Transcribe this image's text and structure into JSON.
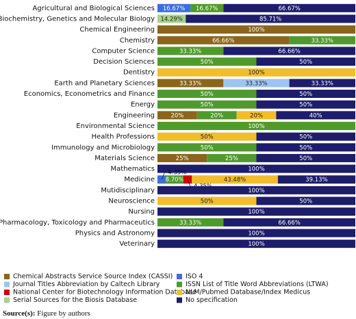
{
  "chart_data": {
    "type": "stacked-barh",
    "categories": [
      "Agricultural and Biological Sciences",
      "Biochemistry, Genetics and Molecular Biology",
      "Chemical Engineering",
      "Chemistry",
      "Computer Science",
      "Decision Sciences",
      "Dentistry",
      "Earth and Planetary Sciences",
      "Economics, Econometrics and Finance",
      "Energy",
      "Engineering",
      "Environmental Science",
      "Health Professions",
      "Immunology and Microbiology",
      "Materials Science",
      "Mathematics",
      "Medicine",
      "Mutidisciplinary",
      "Neuroscience",
      "Nursing",
      "Pharmacology, Toxicology and Pharmaceutics",
      "Physics and Astronomy",
      "Veterinary"
    ],
    "xlim": [
      0,
      100
    ],
    "series": [
      {
        "name": "Chemical Abstracts Service Source Index (CASSI)",
        "color": "#8a651b",
        "values": [
          0,
          0,
          100,
          66.66,
          0,
          0,
          0,
          33.33,
          0,
          0,
          20,
          0,
          0,
          0,
          25,
          0,
          0,
          0,
          0,
          0,
          0,
          0,
          0
        ],
        "value_labels": [
          null,
          null,
          "100%",
          "66.66%",
          null,
          null,
          null,
          "33.33%",
          null,
          null,
          "20%",
          null,
          null,
          null,
          "25%",
          null,
          null,
          null,
          null,
          null,
          null,
          null,
          null
        ]
      },
      {
        "name": "ISO 4",
        "color": "#3a6fdc",
        "values": [
          16.67,
          0,
          0,
          0,
          0,
          0,
          0,
          0,
          0,
          0,
          0,
          0,
          0,
          0,
          0,
          0,
          4.35,
          0,
          0,
          0,
          0,
          0,
          0
        ],
        "value_labels": [
          "16.67%",
          null,
          null,
          null,
          null,
          null,
          null,
          null,
          null,
          null,
          null,
          null,
          null,
          null,
          null,
          null,
          "4.35%",
          null,
          null,
          null,
          null,
          null,
          null
        ]
      },
      {
        "name": "Journal Titles Abbreviation by Caltech Library",
        "color": "#9ec5f2",
        "values": [
          0,
          0,
          0,
          0,
          0,
          0,
          0,
          33.33,
          0,
          0,
          0,
          0,
          0,
          0,
          0,
          0,
          0,
          0,
          0,
          0,
          0,
          0,
          0
        ],
        "value_labels": [
          null,
          null,
          null,
          null,
          null,
          null,
          null,
          "33.33%",
          null,
          null,
          null,
          null,
          null,
          null,
          null,
          null,
          null,
          null,
          null,
          null,
          null,
          null,
          null
        ]
      },
      {
        "name": "ISSN List of Title Word Abbreviations (LTWA)",
        "color": "#4f9a2c",
        "values": [
          16.67,
          0,
          0,
          33.33,
          33.33,
          50,
          0,
          0,
          50,
          50,
          20,
          100,
          0,
          50,
          25,
          0,
          8.7,
          0,
          0,
          0,
          33.33,
          0,
          0
        ],
        "value_labels": [
          "16.67%",
          null,
          null,
          "33.33%",
          "33.33%",
          "50%",
          null,
          null,
          "50%",
          "50%",
          "20%",
          "100%",
          null,
          "50%",
          "25%",
          null,
          "8.70%",
          null,
          null,
          null,
          "33.33%",
          null,
          null
        ]
      },
      {
        "name": "National Center for Biotechnology Information Database",
        "color": "#d40000",
        "values": [
          0,
          0,
          0,
          0,
          0,
          0,
          0,
          0,
          0,
          0,
          0,
          0,
          0,
          0,
          0,
          0,
          4.35,
          0,
          0,
          0,
          0,
          0,
          0
        ],
        "value_labels": [
          null,
          null,
          null,
          null,
          null,
          null,
          null,
          null,
          null,
          null,
          null,
          null,
          null,
          null,
          null,
          null,
          "4.35%",
          null,
          null,
          null,
          null,
          null,
          null
        ]
      },
      {
        "name": "NLM/Pubmed Database/Index Medicus",
        "color": "#f2bd2c",
        "values": [
          0,
          0,
          0,
          0,
          0,
          0,
          100,
          0,
          0,
          0,
          20,
          0,
          50,
          0,
          0,
          0,
          43.48,
          0,
          50,
          0,
          0,
          0,
          0
        ],
        "value_labels": [
          null,
          null,
          null,
          null,
          null,
          null,
          "100%",
          null,
          null,
          null,
          "20%",
          null,
          "50%",
          null,
          null,
          null,
          "43.48%",
          null,
          "50%",
          null,
          null,
          null,
          null
        ]
      },
      {
        "name": "Serial Sources for the Biosis  Database",
        "color": "#a9d18e",
        "values": [
          0,
          14.29,
          0,
          0,
          0,
          0,
          0,
          0,
          0,
          0,
          0,
          0,
          0,
          0,
          0,
          0,
          0,
          0,
          0,
          0,
          0,
          0,
          0
        ],
        "value_labels": [
          null,
          "14.29%",
          null,
          null,
          null,
          null,
          null,
          null,
          null,
          null,
          null,
          null,
          null,
          null,
          null,
          null,
          null,
          null,
          null,
          null,
          null,
          null,
          null
        ]
      },
      {
        "name": "No specification",
        "color": "#1d1d6b",
        "values": [
          66.67,
          85.71,
          0,
          0,
          66.66,
          50,
          0,
          33.33,
          50,
          50,
          40,
          0,
          50,
          50,
          50,
          100,
          39.13,
          100,
          50,
          100,
          66.66,
          100,
          100
        ],
        "value_labels": [
          "66.67%",
          "85.71%",
          null,
          null,
          "66.66%",
          "50%",
          null,
          "33.33%",
          "50%",
          "50%",
          "40%",
          null,
          "50%",
          "50%",
          "50%",
          "100%",
          "39.13%",
          "100%",
          "50%",
          "100%",
          "66.66%",
          "100%",
          "100%"
        ]
      }
    ],
    "source_label": "Source(s):",
    "source_text": "Figure by authors"
  }
}
